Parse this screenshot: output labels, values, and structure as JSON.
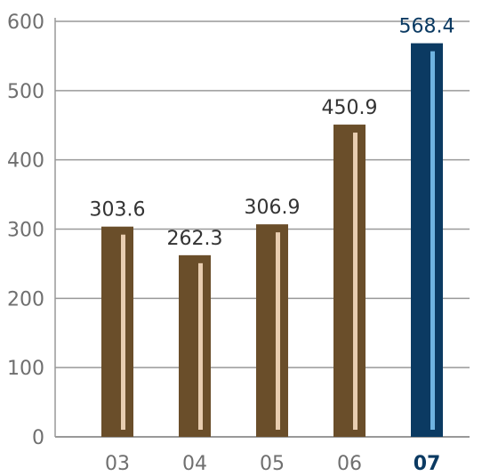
{
  "chart_data": {
    "type": "bar",
    "categories": [
      "03",
      "04",
      "05",
      "06",
      "07"
    ],
    "values": [
      303.6,
      262.3,
      306.9,
      450.9,
      568.4
    ],
    "value_labels": [
      "303.6",
      "262.3",
      "306.9",
      "450.9",
      "568.4"
    ],
    "title": "",
    "xlabel": "",
    "ylabel": "",
    "ylim": [
      0,
      600
    ],
    "yticks": [
      0,
      100,
      200,
      300,
      400,
      500,
      600
    ],
    "grid": true,
    "highlight_index": 4,
    "colors": {
      "bar": "#6a4e2a",
      "bar_stripe": "#e8cdb0",
      "highlight_bar": "#0b3a62",
      "highlight_stripe": "#6fb3e0",
      "grid": "#999999",
      "axis": "#999999"
    }
  }
}
